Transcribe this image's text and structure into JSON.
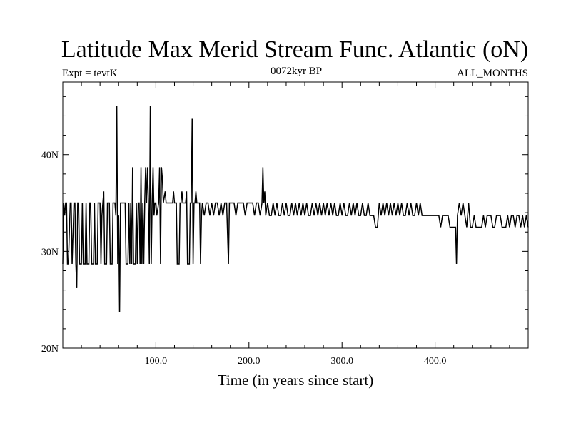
{
  "chart_data": {
    "type": "line",
    "title": "Latitude Max Merid Stream Func. Atlantic (oN)",
    "subtitle_left": "Expt = tevtK",
    "subtitle_center": "0072kyr BP",
    "subtitle_right": "ALL_MONTHS",
    "xlabel": "Time (in years since start)",
    "ylabel": "",
    "xlim": [
      0,
      500
    ],
    "ylim": [
      20,
      47.5
    ],
    "x_ticks": [
      100,
      200,
      300,
      400
    ],
    "x_tick_labels": [
      "100.0",
      "200.0",
      "300.0",
      "400.0"
    ],
    "y_ticks": [
      20,
      30,
      40
    ],
    "y_tick_labels": [
      "20N",
      "30N",
      "40N"
    ],
    "grid": false,
    "series": [
      {
        "color": "#000000",
        "points": [
          [
            0,
            28.7
          ],
          [
            1,
            35
          ],
          [
            2,
            33.7
          ],
          [
            3,
            35
          ],
          [
            4,
            35
          ],
          [
            5,
            28.7
          ],
          [
            6,
            28.7
          ],
          [
            8,
            35
          ],
          [
            9,
            35
          ],
          [
            10,
            28.7
          ],
          [
            12,
            35
          ],
          [
            13,
            35
          ],
          [
            14,
            28.7
          ],
          [
            15,
            26.2
          ],
          [
            16,
            35
          ],
          [
            17,
            35
          ],
          [
            18,
            28.7
          ],
          [
            20,
            28.7
          ],
          [
            21,
            35
          ],
          [
            22,
            28.7
          ],
          [
            24,
            28.7
          ],
          [
            25,
            35
          ],
          [
            26,
            28.7
          ],
          [
            28,
            28.7
          ],
          [
            29,
            35
          ],
          [
            30,
            35
          ],
          [
            31,
            28.7
          ],
          [
            33,
            28.7
          ],
          [
            34,
            35
          ],
          [
            35,
            28.7
          ],
          [
            37,
            28.7
          ],
          [
            38,
            35
          ],
          [
            40,
            35
          ],
          [
            41,
            28.7
          ],
          [
            42,
            33.7
          ],
          [
            43,
            35
          ],
          [
            44,
            36.2
          ],
          [
            45,
            28.7
          ],
          [
            47,
            28.7
          ],
          [
            48,
            35
          ],
          [
            50,
            35
          ],
          [
            51,
            28.7
          ],
          [
            53,
            28.7
          ],
          [
            54,
            35
          ],
          [
            56,
            35
          ],
          [
            57,
            33.7
          ],
          [
            58,
            45
          ],
          [
            59,
            28.7
          ],
          [
            60,
            33.7
          ],
          [
            61,
            23.7
          ],
          [
            62,
            35
          ],
          [
            64,
            35
          ],
          [
            66,
            35
          ],
          [
            67,
            35
          ],
          [
            68,
            28.7
          ],
          [
            70,
            28.7
          ],
          [
            71,
            35
          ],
          [
            72,
            28.7
          ],
          [
            73,
            35
          ],
          [
            74,
            28.7
          ],
          [
            75,
            38.7
          ],
          [
            76,
            28.7
          ],
          [
            78,
            28.7
          ],
          [
            79,
            35
          ],
          [
            80,
            28.7
          ],
          [
            81,
            35
          ],
          [
            82,
            35
          ],
          [
            83,
            28.7
          ],
          [
            84,
            38.7
          ],
          [
            85,
            28.7
          ],
          [
            86,
            35
          ],
          [
            87,
            28.7
          ],
          [
            88,
            35
          ],
          [
            89,
            38.7
          ],
          [
            90,
            35
          ],
          [
            91,
            38.7
          ],
          [
            92,
            35
          ],
          [
            93,
            28.7
          ],
          [
            94,
            45
          ],
          [
            95,
            28.7
          ],
          [
            96,
            35
          ],
          [
            97,
            38.7
          ],
          [
            98,
            33.7
          ],
          [
            99,
            35
          ],
          [
            100,
            35
          ],
          [
            101,
            33.7
          ],
          [
            103,
            35
          ],
          [
            104,
            38.7
          ],
          [
            105,
            28.7
          ],
          [
            106,
            38.7
          ],
          [
            107,
            37.5
          ],
          [
            108,
            35
          ],
          [
            110,
            36.2
          ],
          [
            111,
            35
          ],
          [
            114,
            35
          ],
          [
            115,
            35
          ],
          [
            118,
            35
          ],
          [
            119,
            36.2
          ],
          [
            120,
            35
          ],
          [
            122,
            35
          ],
          [
            123,
            28.7
          ],
          [
            125,
            28.7
          ],
          [
            126,
            35
          ],
          [
            127,
            35
          ],
          [
            128,
            36.2
          ],
          [
            129,
            35
          ],
          [
            130,
            35
          ],
          [
            132,
            35
          ],
          [
            133,
            36.2
          ],
          [
            134,
            28.7
          ],
          [
            136,
            28.7
          ],
          [
            137,
            35
          ],
          [
            138,
            35
          ],
          [
            139,
            43.7
          ],
          [
            140,
            28.7
          ],
          [
            141,
            35
          ],
          [
            142,
            35
          ],
          [
            143,
            36.2
          ],
          [
            144,
            35
          ],
          [
            145,
            35
          ],
          [
            147,
            35
          ],
          [
            148,
            28.7
          ],
          [
            149,
            33.7
          ],
          [
            150,
            35
          ],
          [
            152,
            33.7
          ],
          [
            154,
            35
          ],
          [
            156,
            35
          ],
          [
            158,
            33.7
          ],
          [
            160,
            35
          ],
          [
            162,
            33.7
          ],
          [
            164,
            35
          ],
          [
            166,
            35
          ],
          [
            168,
            33.7
          ],
          [
            170,
            35
          ],
          [
            172,
            33.7
          ],
          [
            174,
            35
          ],
          [
            176,
            35
          ],
          [
            178,
            28.7
          ],
          [
            179,
            35
          ],
          [
            180,
            35
          ],
          [
            182,
            35
          ],
          [
            184,
            35
          ],
          [
            186,
            33.7
          ],
          [
            188,
            35
          ],
          [
            190,
            35
          ],
          [
            192,
            35
          ],
          [
            194,
            35
          ],
          [
            196,
            33.7
          ],
          [
            198,
            35
          ],
          [
            200,
            35
          ],
          [
            202,
            35
          ],
          [
            204,
            35
          ],
          [
            206,
            33.7
          ],
          [
            208,
            35
          ],
          [
            210,
            35
          ],
          [
            212,
            33.7
          ],
          [
            214,
            35
          ],
          [
            215,
            38.7
          ],
          [
            216,
            35
          ],
          [
            217,
            36.2
          ],
          [
            218,
            33.7
          ],
          [
            220,
            35
          ],
          [
            222,
            33.7
          ],
          [
            224,
            33.7
          ],
          [
            226,
            35
          ],
          [
            228,
            33.7
          ],
          [
            230,
            35
          ],
          [
            232,
            33.7
          ],
          [
            234,
            33.7
          ],
          [
            236,
            35
          ],
          [
            238,
            33.7
          ],
          [
            240,
            35
          ],
          [
            242,
            33.7
          ],
          [
            244,
            33.7
          ],
          [
            246,
            35
          ],
          [
            248,
            33.7
          ],
          [
            250,
            35
          ],
          [
            252,
            33.7
          ],
          [
            254,
            35
          ],
          [
            256,
            33.7
          ],
          [
            258,
            35
          ],
          [
            260,
            33.7
          ],
          [
            262,
            35
          ],
          [
            264,
            33.7
          ],
          [
            266,
            33.7
          ],
          [
            268,
            35
          ],
          [
            270,
            33.7
          ],
          [
            272,
            35
          ],
          [
            274,
            33.7
          ],
          [
            276,
            35
          ],
          [
            278,
            33.7
          ],
          [
            280,
            35
          ],
          [
            282,
            33.7
          ],
          [
            284,
            35
          ],
          [
            286,
            33.7
          ],
          [
            288,
            35
          ],
          [
            290,
            33.7
          ],
          [
            292,
            35
          ],
          [
            294,
            33.7
          ],
          [
            296,
            33.7
          ],
          [
            298,
            35
          ],
          [
            300,
            33.7
          ],
          [
            302,
            35
          ],
          [
            304,
            33.7
          ],
          [
            306,
            33.7
          ],
          [
            308,
            35
          ],
          [
            310,
            33.7
          ],
          [
            312,
            35
          ],
          [
            314,
            33.7
          ],
          [
            316,
            35
          ],
          [
            318,
            33.7
          ],
          [
            320,
            33.7
          ],
          [
            322,
            35
          ],
          [
            324,
            33.7
          ],
          [
            326,
            33.7
          ],
          [
            328,
            35
          ],
          [
            330,
            33.7
          ],
          [
            332,
            33.7
          ],
          [
            334,
            33.7
          ],
          [
            336,
            32.5
          ],
          [
            338,
            32.5
          ],
          [
            340,
            35
          ],
          [
            342,
            33.7
          ],
          [
            344,
            35
          ],
          [
            346,
            33.7
          ],
          [
            348,
            35
          ],
          [
            350,
            33.7
          ],
          [
            352,
            35
          ],
          [
            354,
            33.7
          ],
          [
            356,
            35
          ],
          [
            358,
            33.7
          ],
          [
            360,
            35
          ],
          [
            362,
            33.7
          ],
          [
            364,
            35
          ],
          [
            366,
            33.7
          ],
          [
            368,
            33.7
          ],
          [
            370,
            35
          ],
          [
            372,
            33.7
          ],
          [
            374,
            35
          ],
          [
            376,
            33.7
          ],
          [
            378,
            33.7
          ],
          [
            380,
            35
          ],
          [
            382,
            33.7
          ],
          [
            384,
            35
          ],
          [
            386,
            33.7
          ],
          [
            388,
            33.7
          ],
          [
            390,
            33.7
          ],
          [
            392,
            33.7
          ],
          [
            394,
            33.7
          ],
          [
            396,
            33.7
          ],
          [
            398,
            33.7
          ],
          [
            400,
            33.7
          ],
          [
            402,
            33.7
          ],
          [
            404,
            33.7
          ],
          [
            406,
            32.5
          ],
          [
            408,
            33.7
          ],
          [
            410,
            33.7
          ],
          [
            412,
            33.7
          ],
          [
            414,
            33.7
          ],
          [
            416,
            32.5
          ],
          [
            418,
            32.5
          ],
          [
            420,
            32.5
          ],
          [
            422,
            32.5
          ],
          [
            423,
            28.7
          ],
          [
            424,
            33.7
          ],
          [
            426,
            35
          ],
          [
            428,
            33.7
          ],
          [
            430,
            35
          ],
          [
            432,
            33.7
          ],
          [
            434,
            32.5
          ],
          [
            436,
            35
          ],
          [
            438,
            32.5
          ],
          [
            440,
            32.5
          ],
          [
            442,
            33.7
          ],
          [
            444,
            32.5
          ],
          [
            446,
            32.5
          ],
          [
            448,
            32.5
          ],
          [
            450,
            32.5
          ],
          [
            452,
            33.7
          ],
          [
            454,
            32.5
          ],
          [
            456,
            33.7
          ],
          [
            458,
            33.7
          ],
          [
            460,
            33.7
          ],
          [
            462,
            32.5
          ],
          [
            464,
            32.5
          ],
          [
            466,
            33.7
          ],
          [
            468,
            33.7
          ],
          [
            470,
            33.7
          ],
          [
            472,
            32.5
          ],
          [
            474,
            32.5
          ],
          [
            476,
            32.5
          ],
          [
            478,
            33.7
          ],
          [
            480,
            32.5
          ],
          [
            482,
            33.7
          ],
          [
            484,
            33.7
          ],
          [
            486,
            32.5
          ],
          [
            488,
            33.7
          ],
          [
            490,
            33.7
          ],
          [
            492,
            32.5
          ],
          [
            494,
            33.7
          ],
          [
            496,
            32.5
          ],
          [
            498,
            33.7
          ],
          [
            500,
            32.5
          ]
        ]
      }
    ]
  }
}
